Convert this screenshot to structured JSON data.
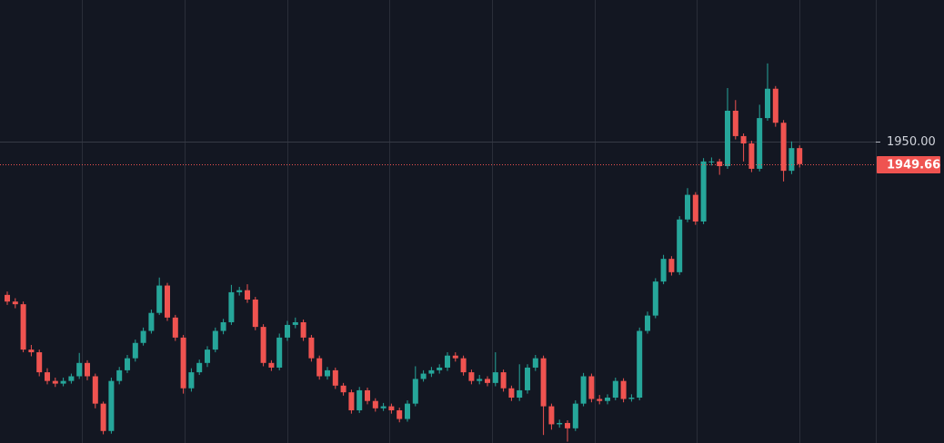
{
  "chart_data": {
    "type": "candlestick",
    "ylim": [
      1945.48,
      1952.12
    ],
    "yticks": [
      {
        "value": 1950,
        "label": "1950.00"
      }
    ],
    "grid": true,
    "last_price": 1949.66,
    "up_color": "#26a69a",
    "down_color": "#ef5350",
    "open": [
      1947.7,
      1947.6,
      1947.56,
      1946.88,
      1946.84,
      1946.54,
      1946.41,
      1946.37,
      1946.41,
      1946.48,
      1946.68,
      1946.48,
      1946.07,
      1945.66,
      1946.41,
      1946.57,
      1946.75,
      1946.98,
      1947.16,
      1947.43,
      1947.84,
      1947.36,
      1947.06,
      1946.3,
      1946.54,
      1946.68,
      1946.88,
      1947.16,
      1947.29,
      1947.74,
      1947.77,
      1947.63,
      1947.22,
      1946.68,
      1946.61,
      1947.06,
      1947.25,
      1947.29,
      1947.06,
      1946.75,
      1946.48,
      1946.57,
      1946.34,
      1946.24,
      1945.97,
      1946.27,
      1946.11,
      1946.0,
      1946.03,
      1945.97,
      1945.84,
      1946.07,
      1946.44,
      1946.52,
      1946.57,
      1946.61,
      1946.79,
      1946.75,
      1946.54,
      1946.41,
      1946.44,
      1946.38,
      1946.54,
      1946.3,
      1946.16,
      1946.27,
      1946.61,
      1946.75,
      1946.03,
      1945.76,
      1945.78,
      1945.7,
      1946.07,
      1946.48,
      1946.14,
      1946.11,
      1946.16,
      1946.41,
      1946.14,
      1946.16,
      1947.16,
      1947.39,
      1947.9,
      1948.24,
      1948.04,
      1948.83,
      1949.2,
      1948.8,
      1949.7,
      1949.7,
      1949.63,
      1950.46,
      1950.08,
      1949.97,
      1949.59,
      1950.35,
      1950.79,
      1950.28,
      1949.56,
      1949.9
    ],
    "high": [
      1947.75,
      1947.65,
      1947.6,
      1946.95,
      1946.88,
      1946.6,
      1946.46,
      1946.46,
      1946.52,
      1946.83,
      1946.72,
      1946.52,
      1946.1,
      1946.46,
      1946.62,
      1946.8,
      1947.03,
      1947.21,
      1947.48,
      1947.96,
      1947.88,
      1947.4,
      1947.1,
      1946.6,
      1946.73,
      1946.93,
      1947.21,
      1947.34,
      1947.85,
      1947.82,
      1947.86,
      1947.67,
      1947.26,
      1946.72,
      1947.12,
      1947.31,
      1947.36,
      1947.33,
      1947.1,
      1946.79,
      1946.62,
      1946.61,
      1946.38,
      1946.28,
      1946.32,
      1946.31,
      1946.15,
      1946.08,
      1946.07,
      1946.01,
      1946.12,
      1946.63,
      1946.57,
      1946.62,
      1946.66,
      1946.84,
      1946.84,
      1946.79,
      1946.58,
      1946.5,
      1946.48,
      1946.84,
      1946.58,
      1946.34,
      1946.66,
      1946.66,
      1946.8,
      1946.79,
      1946.07,
      1945.83,
      1945.82,
      1946.12,
      1946.53,
      1946.52,
      1946.2,
      1946.21,
      1946.46,
      1946.45,
      1946.21,
      1947.21,
      1947.45,
      1947.95,
      1948.3,
      1948.28,
      1948.88,
      1949.3,
      1949.24,
      1949.75,
      1949.76,
      1949.74,
      1950.8,
      1950.62,
      1950.12,
      1950.01,
      1950.55,
      1951.17,
      1950.83,
      1950.32,
      1950.0,
      1949.94
    ],
    "low": [
      1947.55,
      1947.5,
      1946.84,
      1946.78,
      1946.48,
      1946.36,
      1946.32,
      1946.33,
      1946.37,
      1946.44,
      1946.42,
      1946.0,
      1945.61,
      1945.62,
      1946.36,
      1946.53,
      1946.7,
      1946.94,
      1947.12,
      1947.4,
      1947.31,
      1947.01,
      1946.22,
      1946.25,
      1946.5,
      1946.62,
      1946.84,
      1947.11,
      1947.25,
      1947.69,
      1947.58,
      1947.17,
      1946.63,
      1946.56,
      1946.57,
      1947.01,
      1947.2,
      1947.01,
      1946.7,
      1946.43,
      1946.43,
      1946.29,
      1946.19,
      1945.92,
      1945.93,
      1946.06,
      1945.95,
      1945.96,
      1945.92,
      1945.79,
      1945.8,
      1946.03,
      1946.4,
      1946.47,
      1946.52,
      1946.56,
      1946.7,
      1946.49,
      1946.36,
      1946.36,
      1946.33,
      1946.33,
      1946.25,
      1946.11,
      1946.11,
      1946.22,
      1946.56,
      1945.6,
      1945.68,
      1945.71,
      1945.5,
      1945.66,
      1946.03,
      1946.09,
      1946.06,
      1946.06,
      1946.12,
      1946.09,
      1946.1,
      1946.12,
      1947.12,
      1947.35,
      1947.86,
      1947.99,
      1948.0,
      1948.79,
      1948.75,
      1948.76,
      1949.64,
      1949.5,
      1949.59,
      1950.03,
      1949.7,
      1949.54,
      1949.55,
      1950.31,
      1950.22,
      1949.4,
      1949.51,
      1949.61
    ],
    "close": [
      1947.6,
      1947.56,
      1946.88,
      1946.84,
      1946.54,
      1946.41,
      1946.37,
      1946.41,
      1946.48,
      1946.68,
      1946.48,
      1946.07,
      1945.66,
      1946.41,
      1946.57,
      1946.75,
      1946.98,
      1947.16,
      1947.43,
      1947.84,
      1947.36,
      1947.06,
      1946.3,
      1946.54,
      1946.68,
      1946.88,
      1947.16,
      1947.29,
      1947.74,
      1947.77,
      1947.63,
      1947.22,
      1946.68,
      1946.61,
      1947.06,
      1947.25,
      1947.29,
      1947.06,
      1946.75,
      1946.48,
      1946.57,
      1946.34,
      1946.24,
      1945.97,
      1946.27,
      1946.11,
      1946.0,
      1946.03,
      1945.97,
      1945.84,
      1946.07,
      1946.44,
      1946.52,
      1946.57,
      1946.61,
      1946.79,
      1946.75,
      1946.54,
      1946.41,
      1946.44,
      1946.38,
      1946.54,
      1946.3,
      1946.16,
      1946.27,
      1946.61,
      1946.75,
      1946.03,
      1945.76,
      1945.78,
      1945.7,
      1946.07,
      1946.48,
      1946.14,
      1946.11,
      1946.16,
      1946.41,
      1946.14,
      1946.16,
      1947.16,
      1947.39,
      1947.9,
      1948.24,
      1948.04,
      1948.83,
      1949.2,
      1948.8,
      1949.7,
      1949.7,
      1949.63,
      1950.46,
      1950.08,
      1949.97,
      1949.59,
      1950.35,
      1950.79,
      1950.28,
      1949.56,
      1949.9,
      1949.66
    ]
  }
}
